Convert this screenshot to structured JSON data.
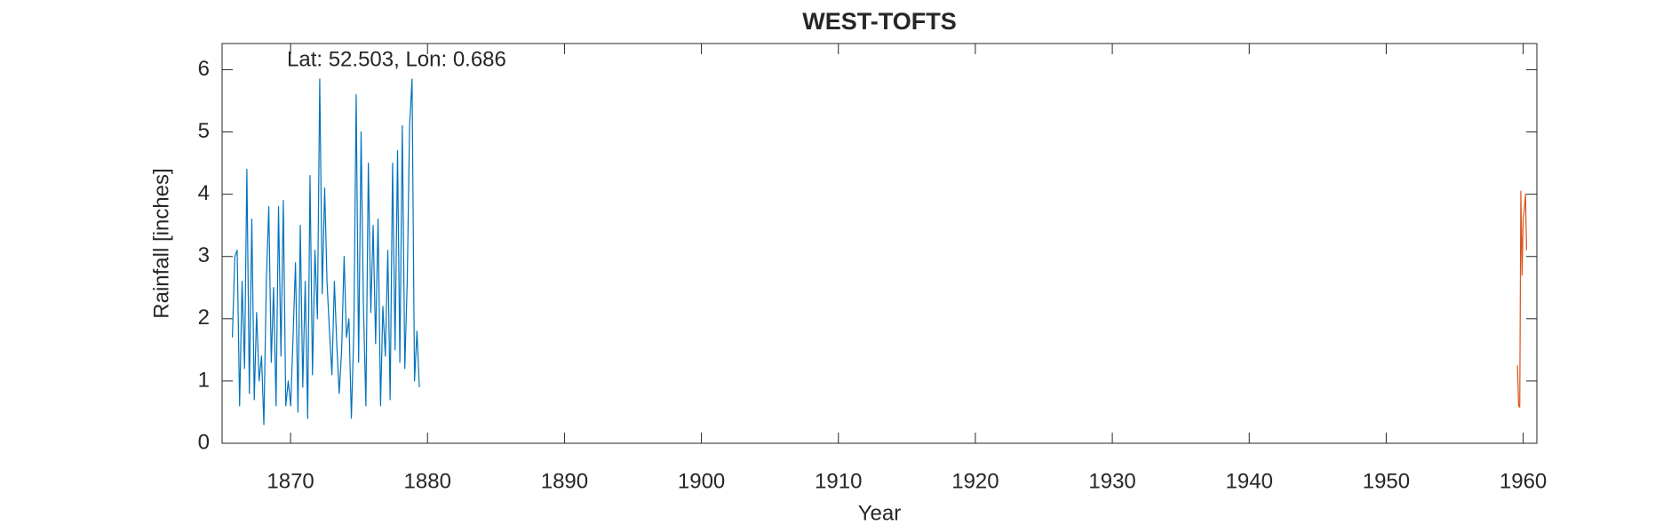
{
  "chart_data": {
    "type": "line",
    "title": "WEST-TOFTS",
    "annotation": "Lat: 52.503, Lon: 0.686",
    "xlabel": "Year",
    "ylabel": "Rainfall [inches]",
    "xlim": [
      1865,
      1961
    ],
    "ylim": [
      0,
      6.42
    ],
    "xticks": [
      1870,
      1880,
      1890,
      1900,
      1910,
      1920,
      1930,
      1940,
      1950,
      1960
    ],
    "yticks": [
      0,
      1,
      2,
      3,
      4,
      5,
      6
    ],
    "series": [
      {
        "color": "#0072bd",
        "x": [
          1865.75,
          1865.93,
          1866.1,
          1866.28,
          1866.46,
          1866.64,
          1866.81,
          1866.99,
          1867.17,
          1867.35,
          1867.52,
          1867.7,
          1867.88,
          1868.05,
          1868.23,
          1868.41,
          1868.59,
          1868.76,
          1868.94,
          1869.12,
          1869.3,
          1869.47,
          1869.65,
          1869.83,
          1870.01,
          1870.18,
          1870.36,
          1870.54,
          1870.71,
          1870.89,
          1871.07,
          1871.25,
          1871.42,
          1871.6,
          1871.78,
          1871.96,
          1872.13,
          1872.31,
          1872.49,
          1872.66,
          1872.84,
          1873.02,
          1873.2,
          1873.37,
          1873.55,
          1873.73,
          1873.91,
          1874.08,
          1874.26,
          1874.44,
          1874.62,
          1874.79,
          1874.97,
          1875.15,
          1875.32,
          1875.5,
          1875.68,
          1875.86,
          1876.03,
          1876.21,
          1876.39,
          1876.57,
          1876.74,
          1876.92,
          1877.1,
          1877.27,
          1877.45,
          1877.63,
          1877.81,
          1877.98,
          1878.16,
          1878.34,
          1878.52,
          1878.69,
          1878.87,
          1879.05,
          1879.23,
          1879.4
        ],
        "values": [
          1.7,
          3.0,
          3.1,
          0.6,
          2.6,
          1.2,
          4.4,
          0.8,
          3.6,
          0.7,
          2.1,
          1.0,
          1.4,
          0.3,
          2.6,
          3.8,
          1.3,
          2.5,
          0.6,
          3.8,
          1.4,
          3.9,
          0.6,
          1.0,
          0.6,
          1.7,
          2.9,
          0.5,
          3.5,
          0.9,
          2.6,
          0.4,
          4.3,
          1.1,
          3.1,
          2.0,
          5.85,
          2.4,
          4.1,
          2.6,
          1.8,
          1.1,
          2.6,
          1.6,
          0.8,
          1.5,
          3.0,
          1.7,
          2.0,
          0.4,
          1.8,
          5.6,
          1.3,
          5.0,
          2.2,
          0.6,
          4.5,
          2.1,
          3.5,
          1.6,
          3.6,
          0.6,
          2.2,
          1.4,
          3.1,
          0.7,
          4.5,
          1.5,
          4.7,
          1.3,
          5.1,
          1.2,
          2.6,
          5.1,
          5.85,
          1.0,
          1.8,
          0.9
        ]
      },
      {
        "color": "#d95319",
        "x": [
          1959.58,
          1959.67,
          1959.75,
          1959.83,
          1959.92,
          1960.0,
          1960.08,
          1960.17,
          1960.25
        ],
        "values": [
          1.25,
          0.6,
          0.58,
          4.05,
          2.7,
          3.6,
          3.75,
          4.0,
          3.1
        ]
      }
    ]
  }
}
